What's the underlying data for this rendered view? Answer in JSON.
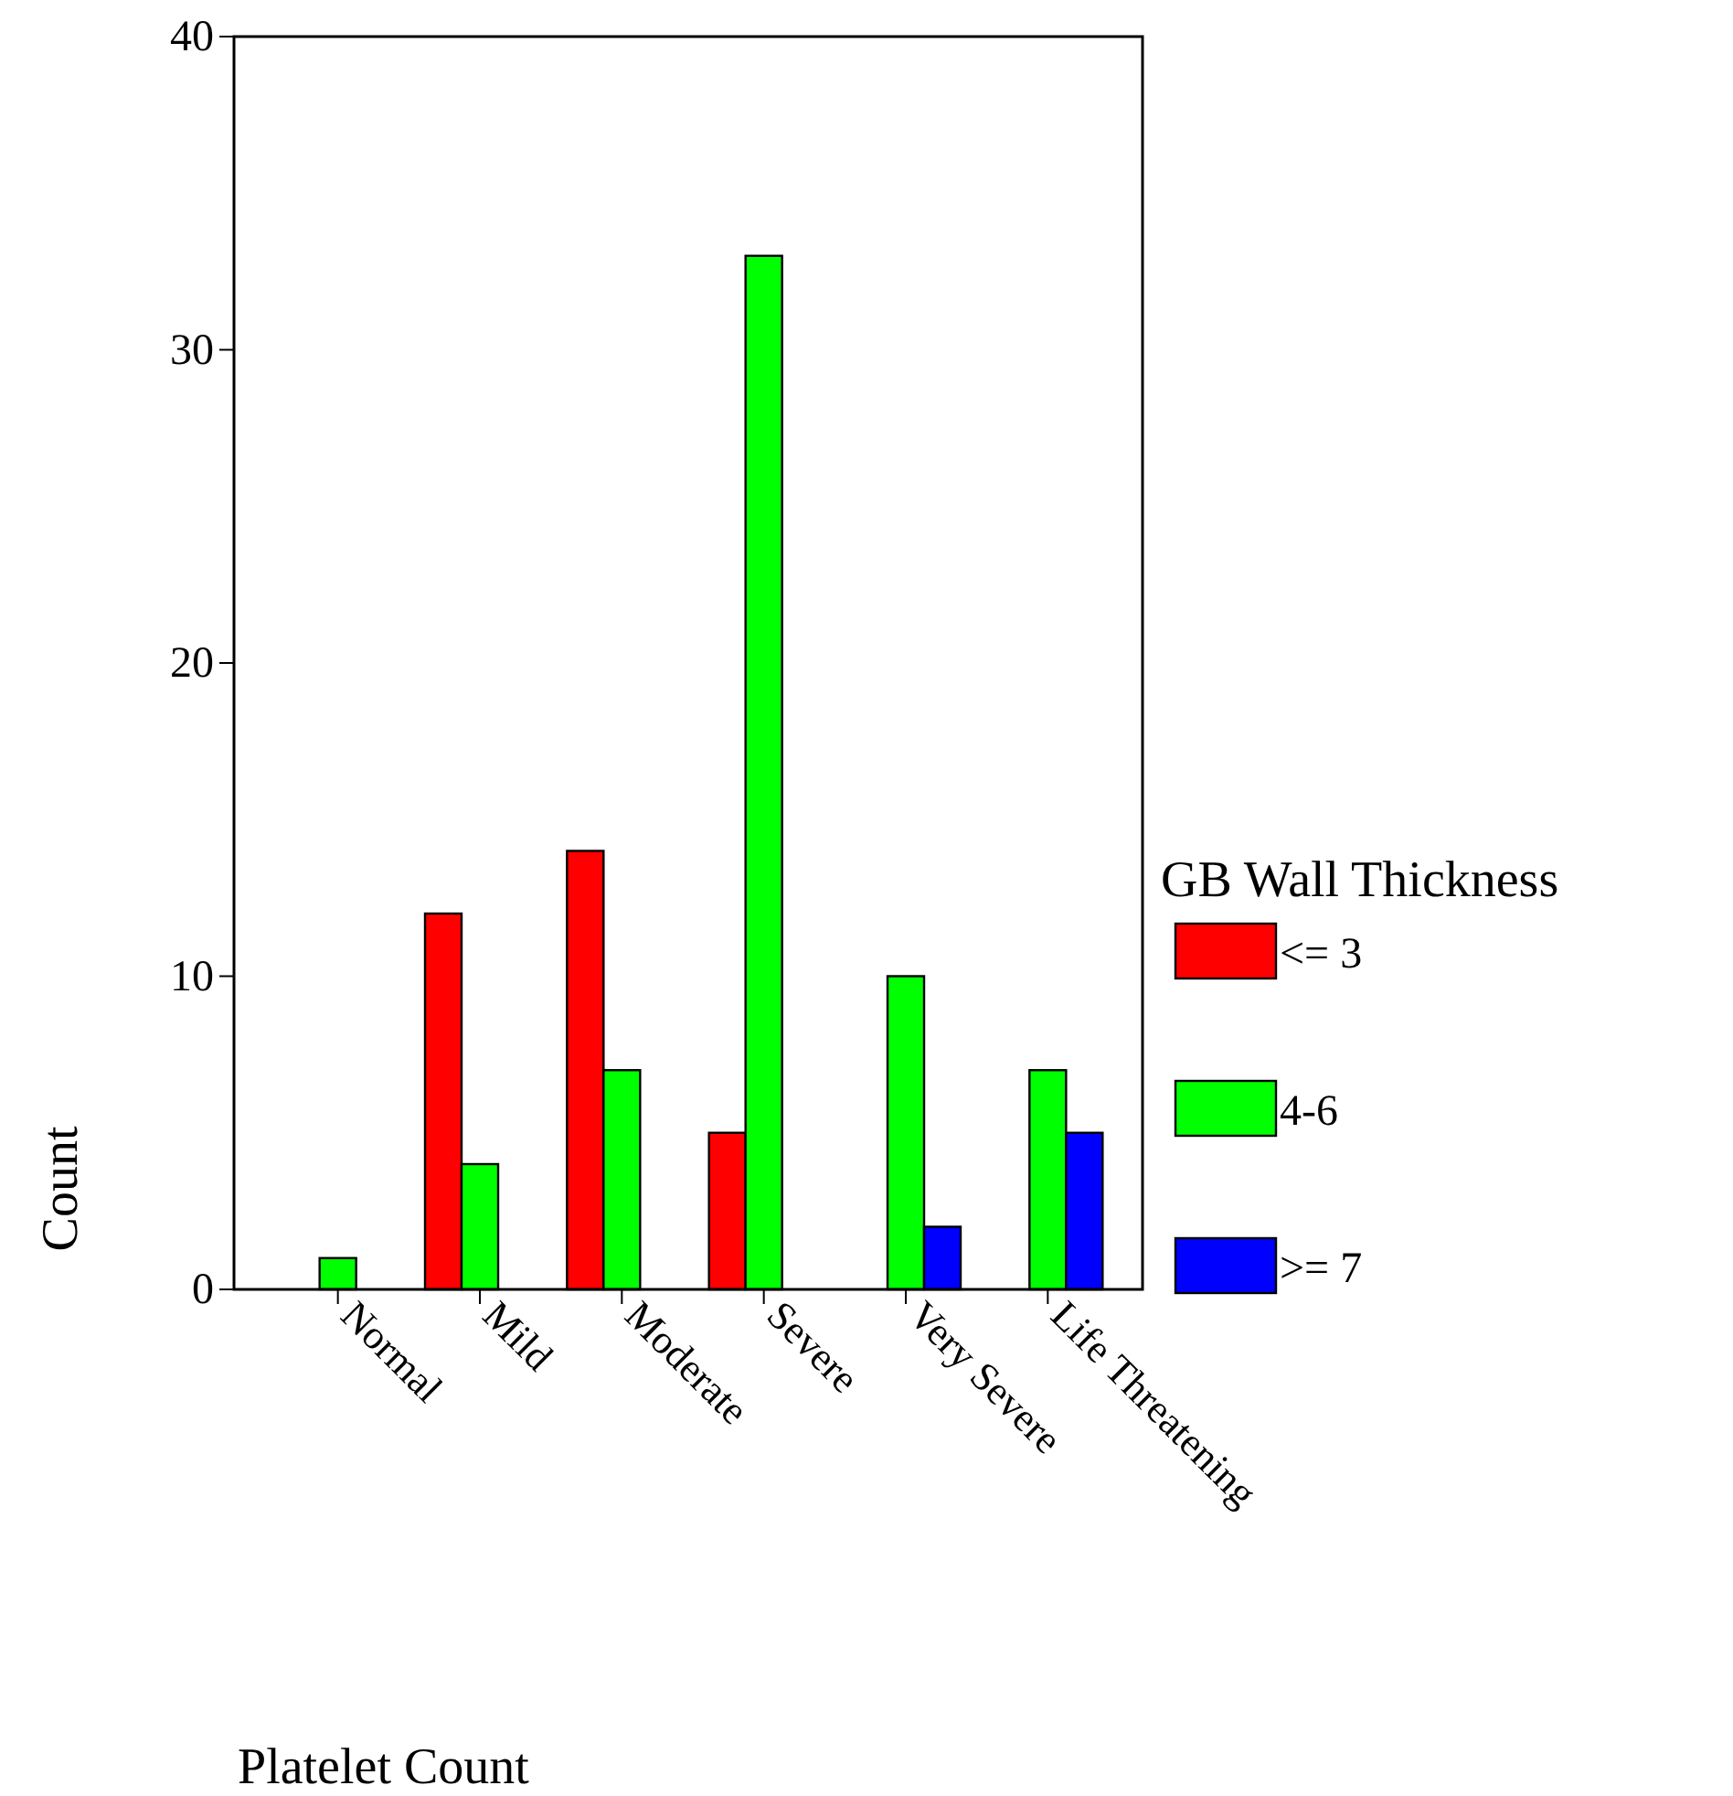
{
  "chart_data": {
    "type": "bar",
    "xlabel": "Platelet Count",
    "ylabel": "Count",
    "legend_title": "GB Wall Thickness",
    "categories": [
      "Normal",
      "Mild",
      "Moderate",
      "Severe",
      "Very Severe",
      "Life Threatening"
    ],
    "series": [
      {
        "name": "<= 3",
        "color": "#ff0000",
        "values": [
          null,
          12,
          14,
          5,
          null,
          null
        ]
      },
      {
        "name": "4-6",
        "color": "#00ff00",
        "values": [
          1,
          4,
          7,
          33,
          10,
          7
        ]
      },
      {
        "name": ">= 7",
        "color": "#0000ff",
        "values": [
          null,
          null,
          null,
          null,
          2,
          5
        ]
      }
    ],
    "ylim": [
      0,
      40
    ],
    "yticks": [
      0,
      10,
      20,
      30,
      40
    ],
    "grid": false,
    "legend": "right"
  }
}
